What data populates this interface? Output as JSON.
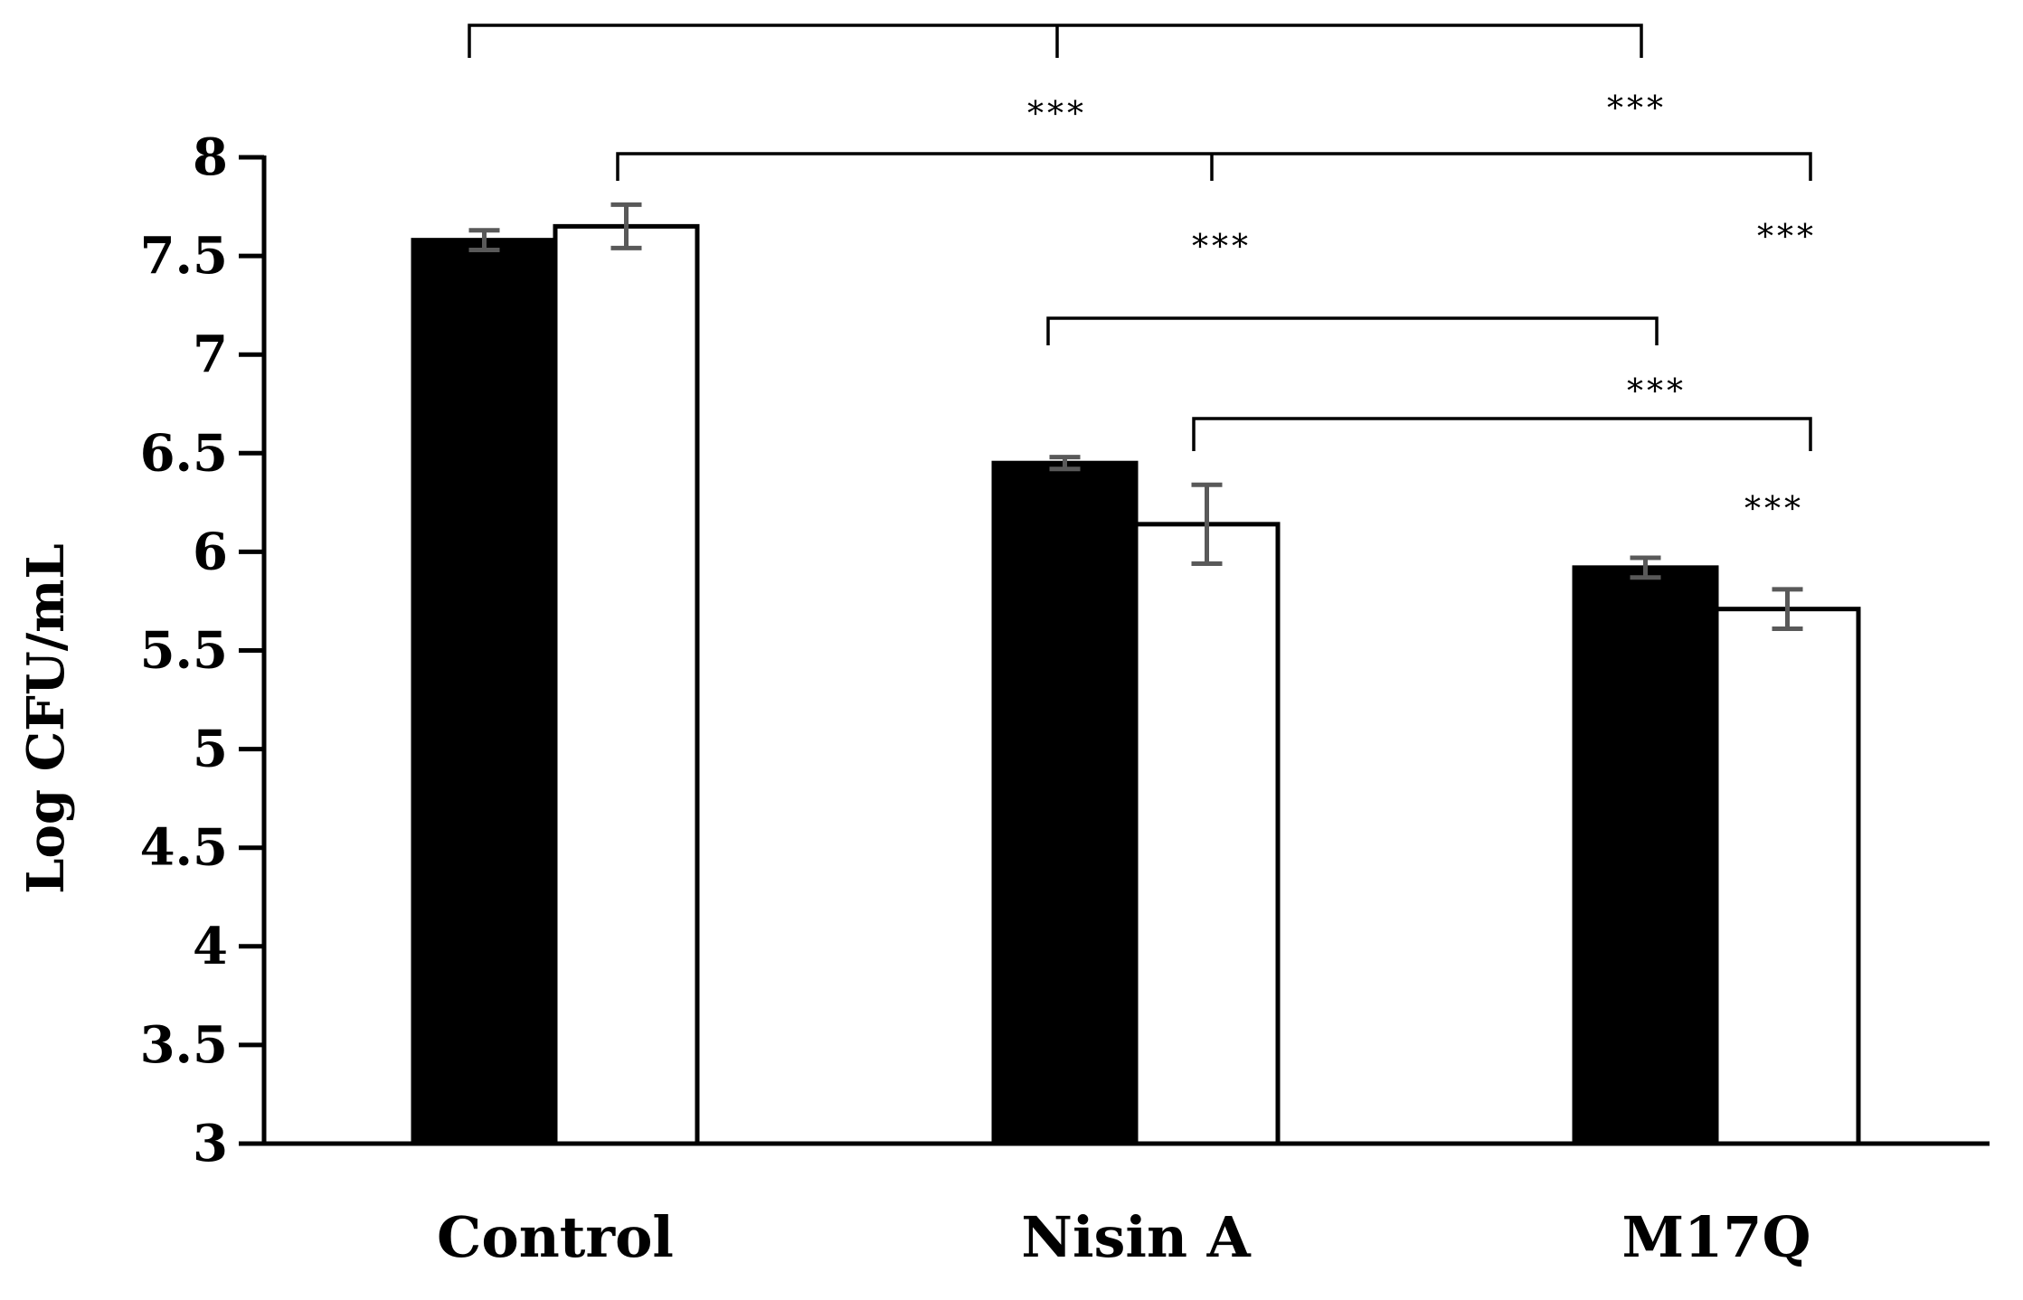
{
  "chart_data": {
    "type": "bar",
    "title": "",
    "xlabel": "",
    "ylabel": "Log  CFU/mL",
    "ylim": [
      3,
      8
    ],
    "yticks": [
      "3",
      "3.5",
      "4",
      "4.5",
      "5",
      "5.5",
      "6",
      "6.5",
      "7",
      "7.5",
      "8"
    ],
    "categories": [
      "Control",
      "Nisin A",
      "M17Q"
    ],
    "grid": false,
    "legend": "none",
    "series": [
      {
        "fill": "#000000",
        "values": [
          7.58,
          6.45,
          5.92
        ],
        "errors": [
          0.05,
          0.03,
          0.05
        ]
      },
      {
        "fill": "#ffffff",
        "values": [
          7.65,
          6.14,
          5.71
        ],
        "errors": [
          0.11,
          0.2,
          0.1
        ]
      }
    ],
    "error_bar_color": "#595959",
    "significance": [
      {
        "from": [
          0,
          0
        ],
        "to": [
          2,
          0
        ],
        "label": "***"
      },
      {
        "from": [
          0,
          1
        ],
        "to": [
          2,
          1
        ],
        "label": "***"
      },
      {
        "from": [
          1,
          0
        ],
        "to": [
          2,
          0
        ],
        "label": "***"
      },
      {
        "from": [
          1,
          1
        ],
        "to": [
          2,
          1
        ],
        "label": "***"
      }
    ]
  }
}
